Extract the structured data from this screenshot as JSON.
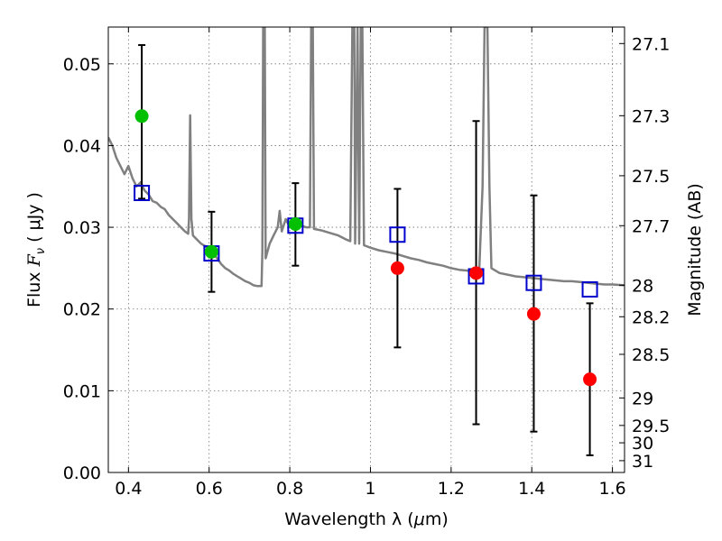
{
  "chart_data": {
    "type": "scatter",
    "title": "",
    "xlabel": "Wavelength  λ (μm)",
    "ylabel": "Flux  F_ν  ( μJy )",
    "ylabel_parts": {
      "prefix": "Flux  ",
      "symbol": "F",
      "subscript": "ν",
      "unit": "  ( μJy )"
    },
    "xlabel_parts": {
      "prefix": "Wavelength  λ (",
      "mu": "μ",
      "unit": "m)"
    },
    "y2label": "Magnitude (AB)",
    "xlim": [
      0.35,
      1.63
    ],
    "ylim": [
      0.0,
      0.0545
    ],
    "grid": true,
    "x_ticks": [
      {
        "v": 0.4,
        "label": "0.4"
      },
      {
        "v": 0.6,
        "label": "0.6"
      },
      {
        "v": 0.8,
        "label": "0.8"
      },
      {
        "v": 1.0,
        "label": "1"
      },
      {
        "v": 1.2,
        "label": "1.2"
      },
      {
        "v": 1.4,
        "label": "1.4"
      },
      {
        "v": 1.6,
        "label": "1.6"
      }
    ],
    "y_ticks": [
      {
        "v": 0.0,
        "label": "0.00"
      },
      {
        "v": 0.01,
        "label": "0.01"
      },
      {
        "v": 0.02,
        "label": "0.02"
      },
      {
        "v": 0.03,
        "label": "0.03"
      },
      {
        "v": 0.04,
        "label": "0.04"
      },
      {
        "v": 0.05,
        "label": "0.05"
      }
    ],
    "y2_ticks": [
      {
        "mag": 27.1,
        "label": "27.1"
      },
      {
        "mag": 27.3,
        "label": "27.3"
      },
      {
        "mag": 27.5,
        "label": "27.5"
      },
      {
        "mag": 27.7,
        "label": "27.7"
      },
      {
        "mag": 28.0,
        "label": "28"
      },
      {
        "mag": 28.2,
        "label": "28.2"
      },
      {
        "mag": 28.5,
        "label": "28.5"
      },
      {
        "mag": 29.0,
        "label": "29"
      },
      {
        "mag": 29.5,
        "label": "29.5"
      },
      {
        "mag": 30.0,
        "label": "30"
      },
      {
        "mag": 31.0,
        "label": "31"
      }
    ],
    "series": [
      {
        "type": "line",
        "color": "#808080",
        "points": [
          [
            0.35,
            0.041
          ],
          [
            0.36,
            0.04
          ],
          [
            0.37,
            0.0385
          ],
          [
            0.38,
            0.0375
          ],
          [
            0.39,
            0.0365
          ],
          [
            0.4,
            0.0375
          ],
          [
            0.41,
            0.036
          ],
          [
            0.42,
            0.035
          ],
          [
            0.43,
            0.0355
          ],
          [
            0.44,
            0.0345
          ],
          [
            0.45,
            0.034
          ],
          [
            0.46,
            0.0332
          ],
          [
            0.47,
            0.033
          ],
          [
            0.48,
            0.0325
          ],
          [
            0.49,
            0.0322
          ],
          [
            0.5,
            0.0315
          ],
          [
            0.51,
            0.031
          ],
          [
            0.52,
            0.0305
          ],
          [
            0.53,
            0.03
          ],
          [
            0.54,
            0.0295
          ],
          [
            0.548,
            0.0292
          ],
          [
            0.55,
            0.031
          ],
          [
            0.553,
            0.0437
          ],
          [
            0.556,
            0.031
          ],
          [
            0.56,
            0.029
          ],
          [
            0.57,
            0.0285
          ],
          [
            0.58,
            0.028
          ],
          [
            0.59,
            0.0277
          ],
          [
            0.6,
            0.0273
          ],
          [
            0.61,
            0.0268
          ],
          [
            0.62,
            0.0262
          ],
          [
            0.63,
            0.0255
          ],
          [
            0.64,
            0.025
          ],
          [
            0.65,
            0.0247
          ],
          [
            0.66,
            0.0243
          ],
          [
            0.67,
            0.024
          ],
          [
            0.68,
            0.0237
          ],
          [
            0.69,
            0.0234
          ],
          [
            0.7,
            0.0232
          ],
          [
            0.71,
            0.0229
          ],
          [
            0.72,
            0.0228
          ],
          [
            0.73,
            0.0228
          ],
          [
            0.732,
            0.027
          ],
          [
            0.734,
            0.0545
          ],
          [
            0.738,
            0.0545
          ],
          [
            0.74,
            0.0262
          ],
          [
            0.75,
            0.028
          ],
          [
            0.76,
            0.029
          ],
          [
            0.77,
            0.03
          ],
          [
            0.775,
            0.032
          ],
          [
            0.78,
            0.0295
          ],
          [
            0.79,
            0.031
          ],
          [
            0.8,
            0.03
          ],
          [
            0.81,
            0.0302
          ],
          [
            0.82,
            0.03
          ],
          [
            0.83,
            0.0302
          ],
          [
            0.84,
            0.03
          ],
          [
            0.85,
            0.03
          ],
          [
            0.853,
            0.0545
          ],
          [
            0.857,
            0.0545
          ],
          [
            0.86,
            0.0298
          ],
          [
            0.88,
            0.0296
          ],
          [
            0.9,
            0.0293
          ],
          [
            0.92,
            0.029
          ],
          [
            0.94,
            0.0285
          ],
          [
            0.95,
            0.0283
          ],
          [
            0.955,
            0.0545
          ],
          [
            0.96,
            0.0545
          ],
          [
            0.962,
            0.028
          ],
          [
            0.968,
            0.0545
          ],
          [
            0.972,
            0.028
          ],
          [
            0.976,
            0.0545
          ],
          [
            0.98,
            0.0545
          ],
          [
            0.984,
            0.0278
          ],
          [
            1.0,
            0.0275
          ],
          [
            1.02,
            0.0272
          ],
          [
            1.04,
            0.027
          ],
          [
            1.06,
            0.0268
          ],
          [
            1.08,
            0.0265
          ],
          [
            1.1,
            0.0262
          ],
          [
            1.12,
            0.026
          ],
          [
            1.14,
            0.0257
          ],
          [
            1.16,
            0.0255
          ],
          [
            1.18,
            0.0253
          ],
          [
            1.2,
            0.025
          ],
          [
            1.22,
            0.0248
          ],
          [
            1.24,
            0.0247
          ],
          [
            1.26,
            0.0246
          ],
          [
            1.27,
            0.025
          ],
          [
            1.278,
            0.035
          ],
          [
            1.283,
            0.0545
          ],
          [
            1.29,
            0.0545
          ],
          [
            1.295,
            0.035
          ],
          [
            1.3,
            0.025
          ],
          [
            1.32,
            0.0244
          ],
          [
            1.34,
            0.0242
          ],
          [
            1.36,
            0.024
          ],
          [
            1.38,
            0.0239
          ],
          [
            1.4,
            0.0238
          ],
          [
            1.42,
            0.0237
          ],
          [
            1.44,
            0.0236
          ],
          [
            1.46,
            0.0235
          ],
          [
            1.48,
            0.0234
          ],
          [
            1.5,
            0.0234
          ],
          [
            1.52,
            0.0233
          ],
          [
            1.54,
            0.0232
          ],
          [
            1.56,
            0.0231
          ],
          [
            1.58,
            0.023
          ],
          [
            1.6,
            0.023
          ],
          [
            1.63,
            0.0229
          ]
        ]
      },
      {
        "type": "errorbar",
        "color": "#000000",
        "points": [
          {
            "x": 0.433,
            "lo": 0.0335,
            "hi": 0.0523
          },
          {
            "x": 0.606,
            "lo": 0.0221,
            "hi": 0.0319
          },
          {
            "x": 0.814,
            "lo": 0.0253,
            "hi": 0.0354
          },
          {
            "x": 1.067,
            "lo": 0.0153,
            "hi": 0.0347
          },
          {
            "x": 1.262,
            "lo": 0.0059,
            "hi": 0.043
          },
          {
            "x": 1.405,
            "lo": 0.005,
            "hi": 0.0339
          },
          {
            "x": 1.544,
            "lo": 0.0021,
            "hi": 0.0207
          }
        ]
      },
      {
        "type": "scatter",
        "marker": "square",
        "color": "#0000cc",
        "points": [
          [
            0.433,
            0.0342
          ],
          [
            0.606,
            0.0268
          ],
          [
            0.814,
            0.0302
          ],
          [
            1.067,
            0.0291
          ],
          [
            1.262,
            0.024
          ],
          [
            1.405,
            0.0232
          ],
          [
            1.544,
            0.0224
          ]
        ]
      },
      {
        "type": "scatter",
        "marker": "circle",
        "color": "#00c000",
        "points": [
          [
            0.433,
            0.0436
          ],
          [
            0.606,
            0.027
          ],
          [
            0.814,
            0.0304
          ]
        ]
      },
      {
        "type": "scatter",
        "marker": "circle",
        "color": "#ff0000",
        "points": [
          [
            1.067,
            0.025
          ],
          [
            1.262,
            0.0244
          ],
          [
            1.405,
            0.0194
          ],
          [
            1.544,
            0.0114
          ]
        ]
      }
    ]
  }
}
